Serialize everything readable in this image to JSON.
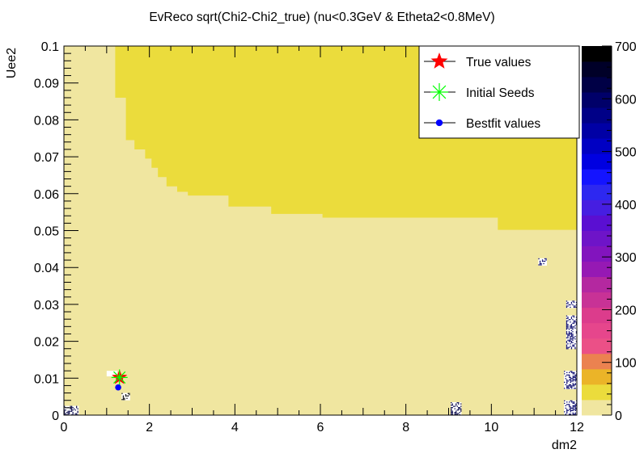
{
  "chart_data": {
    "type": "heatmap",
    "title": "EvReco sqrt(Chi2-Chi2_true) (nu<0.3GeV & Etheta2<0.8MeV)",
    "xlabel": "dm2",
    "ylabel": "Uee2",
    "xlim": [
      0,
      12
    ],
    "ylim": [
      0,
      0.1
    ],
    "x_ticks": [
      0,
      2,
      4,
      6,
      8,
      10,
      12
    ],
    "x_tick_labels": [
      "0",
      "2",
      "4",
      "6",
      "8",
      "10",
      "12"
    ],
    "y_ticks": [
      0,
      0.01,
      0.02,
      0.03,
      0.04,
      0.05,
      0.06,
      0.07,
      0.08,
      0.09,
      0.1
    ],
    "y_tick_labels": [
      "0",
      "0.01",
      "0.02",
      "0.03",
      "0.04",
      "0.05",
      "0.06",
      "0.07",
      "0.08",
      "0.09",
      "0.1"
    ],
    "z_range": [
      0,
      700
    ],
    "z_ticks": [
      0,
      100,
      200,
      300,
      400,
      500,
      600,
      700
    ],
    "z_tick_labels": [
      "0",
      "100",
      "200",
      "300",
      "400",
      "500",
      "600",
      "700"
    ],
    "palette": [
      "#f0e6a0",
      "#ebdc3c",
      "#ebb428",
      "#eb8250",
      "#eb5087",
      "#e6468c",
      "#dc3c8c",
      "#c83296",
      "#b428a0",
      "#9619b4",
      "#8214be",
      "#6e14c8",
      "#5a0fd2",
      "#461ee1",
      "#2d28f0",
      "#1414ff",
      "#0000e1",
      "#0000c3",
      "#0000a5",
      "#000087",
      "#000069",
      "#000046",
      "#000028",
      "#000000"
    ],
    "background_level_value": 25,
    "upper_region": {
      "level_value": 45,
      "boundary": [
        [
          1.2,
          0.1
        ],
        [
          1.2,
          0.086
        ],
        [
          1.45,
          0.086
        ],
        [
          1.45,
          0.0745
        ],
        [
          1.65,
          0.0745
        ],
        [
          1.65,
          0.072
        ],
        [
          1.9,
          0.072
        ],
        [
          1.9,
          0.0695
        ],
        [
          2.05,
          0.0695
        ],
        [
          2.05,
          0.067
        ],
        [
          2.2,
          0.067
        ],
        [
          2.2,
          0.0645
        ],
        [
          2.4,
          0.0645
        ],
        [
          2.4,
          0.062
        ],
        [
          2.65,
          0.062
        ],
        [
          2.65,
          0.0605
        ],
        [
          2.9,
          0.0605
        ],
        [
          2.9,
          0.0595
        ],
        [
          3.85,
          0.0595
        ],
        [
          3.85,
          0.0565
        ],
        [
          4.85,
          0.0565
        ],
        [
          4.85,
          0.0545
        ],
        [
          6.05,
          0.0545
        ],
        [
          6.05,
          0.0535
        ],
        [
          10.15,
          0.0535
        ],
        [
          10.15,
          0.0502
        ],
        [
          12.0,
          0.0502
        ],
        [
          12.0,
          0.1
        ]
      ]
    },
    "hot_spots": [
      {
        "x": [
          1.35,
          1.55
        ],
        "y": [
          0.004,
          0.006
        ],
        "level_value": 680
      },
      {
        "x": [
          1.0,
          1.25
        ],
        "y": [
          0.0105,
          0.012
        ],
        "level_value": 5
      },
      {
        "x": [
          0.0,
          0.35
        ],
        "y": [
          0.0,
          0.0025
        ],
        "level_value": 620
      },
      {
        "x": [
          9.05,
          9.3
        ],
        "y": [
          0.0,
          0.0035
        ],
        "level_value": 640
      },
      {
        "x": [
          11.7,
          12.0
        ],
        "y": [
          0.0,
          0.004
        ],
        "level_value": 600
      },
      {
        "x": [
          11.7,
          12.0
        ],
        "y": [
          0.007,
          0.012
        ],
        "level_value": 600
      },
      {
        "x": [
          11.75,
          12.0
        ],
        "y": [
          0.018,
          0.027
        ],
        "level_value": 600
      },
      {
        "x": [
          11.75,
          12.0
        ],
        "y": [
          0.029,
          0.031
        ],
        "level_value": 600
      },
      {
        "x": [
          11.1,
          11.3
        ],
        "y": [
          0.0405,
          0.0425
        ],
        "level_value": 600
      }
    ],
    "points": [
      {
        "name": "True values",
        "x": 1.3,
        "y": 0.0102,
        "marker": "star",
        "color": "#ff0000"
      },
      {
        "name": "Initial Seeds",
        "x": 1.3,
        "y": 0.0102,
        "marker": "asterisk",
        "color": "#00ff00"
      },
      {
        "name": "Bestfit values",
        "x": 1.27,
        "y": 0.0075,
        "marker": "circle",
        "color": "#0000ff"
      }
    ],
    "legend": {
      "position": "top-right",
      "entries": [
        "True values",
        "Initial Seeds",
        "Bestfit values"
      ]
    }
  }
}
